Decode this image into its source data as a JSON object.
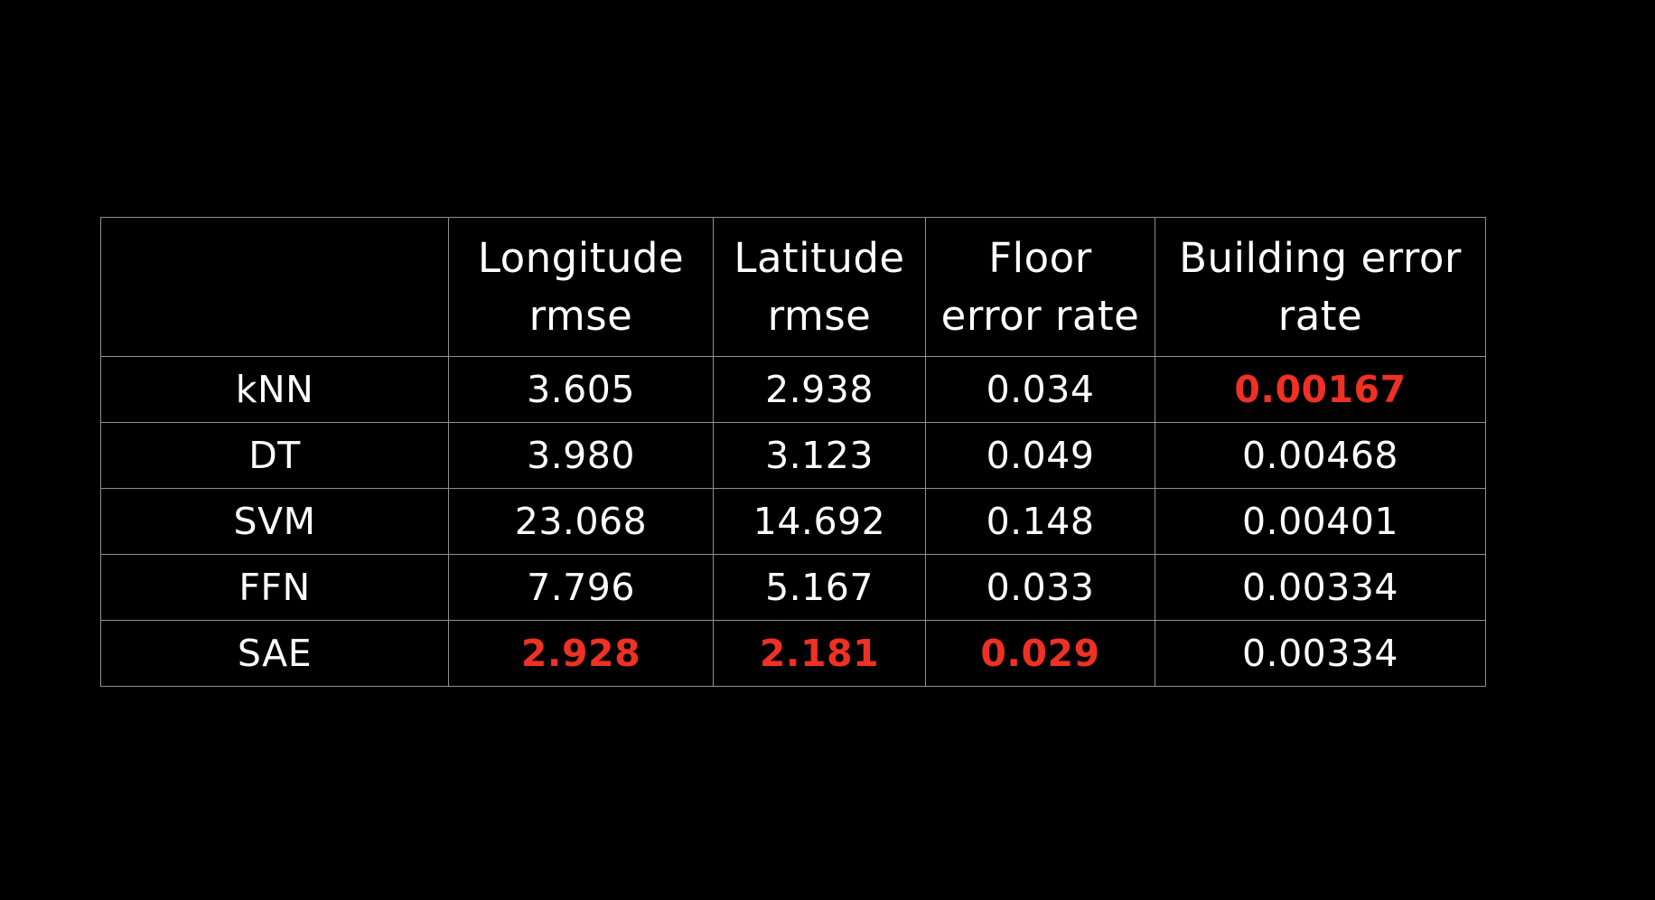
{
  "chart_data": {
    "type": "table",
    "columns": [
      "",
      "Longitude rmse",
      "Latitude rmse",
      "Floor error rate",
      "Building error rate"
    ],
    "header_lines": [
      [],
      [
        "Longitude",
        "rmse"
      ],
      [
        "Latitude",
        "rmse"
      ],
      [
        "Floor",
        "error rate"
      ],
      [
        "Building error",
        "rate"
      ]
    ],
    "rows": [
      {
        "model": "kNN",
        "values": [
          "3.605",
          "2.938",
          "0.034",
          "0.00167"
        ],
        "best": [
          false,
          false,
          false,
          true
        ]
      },
      {
        "model": "DT",
        "values": [
          "3.980",
          "3.123",
          "0.049",
          "0.00468"
        ],
        "best": [
          false,
          false,
          false,
          false
        ]
      },
      {
        "model": "SVM",
        "values": [
          "23.068",
          "14.692",
          "0.148",
          "0.00401"
        ],
        "best": [
          false,
          false,
          false,
          false
        ]
      },
      {
        "model": "FFN",
        "values": [
          "7.796",
          "5.167",
          "0.033",
          "0.00334"
        ],
        "best": [
          false,
          false,
          false,
          false
        ]
      },
      {
        "model": "SAE",
        "values": [
          "2.928",
          "2.181",
          "0.029",
          "0.00334"
        ],
        "best": [
          true,
          true,
          true,
          false
        ]
      }
    ],
    "highlight_color": "#ee3124",
    "text_color": "#ffffff",
    "background_color": "#000000",
    "border_color": "#8f8f8f"
  }
}
